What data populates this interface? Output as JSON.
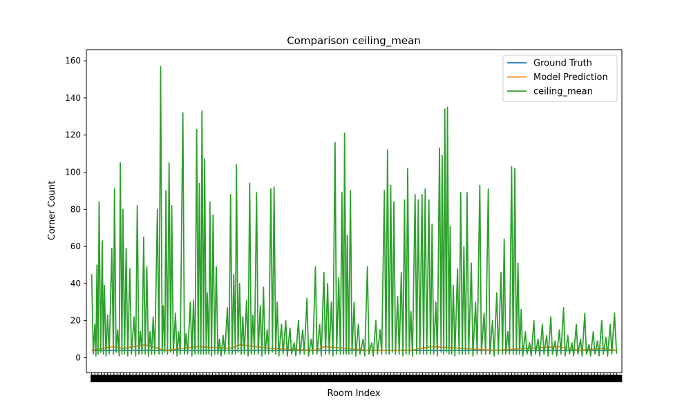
{
  "chart_data": {
    "type": "line",
    "title": "Comparison ceiling_mean",
    "xlabel": "Room Index",
    "ylabel": "Corner Count",
    "ylim": [
      -8,
      166
    ],
    "yticks": [
      0,
      20,
      40,
      60,
      80,
      100,
      120,
      140,
      160
    ],
    "xlim": [
      -10,
      1000
    ],
    "grid": false,
    "legend_position": "top-right",
    "series": [
      {
        "name": "Ground Truth",
        "color": "#1f77b4",
        "points": [
          [
            0,
            4
          ],
          [
            150,
            4
          ],
          [
            300,
            4
          ],
          [
            450,
            4
          ],
          [
            600,
            4
          ],
          [
            750,
            4
          ],
          [
            900,
            4
          ],
          [
            990,
            4
          ]
        ]
      },
      {
        "name": "Model Prediction",
        "color": "#ff7f0e",
        "points": [
          [
            0,
            4
          ],
          [
            40,
            6
          ],
          [
            60,
            5
          ],
          [
            100,
            7
          ],
          [
            140,
            4
          ],
          [
            200,
            6
          ],
          [
            260,
            5
          ],
          [
            280,
            7
          ],
          [
            340,
            5
          ],
          [
            420,
            4
          ],
          [
            440,
            6
          ],
          [
            480,
            5
          ],
          [
            520,
            4
          ],
          [
            600,
            4
          ],
          [
            640,
            6
          ],
          [
            700,
            5
          ],
          [
            760,
            4
          ],
          [
            820,
            5
          ],
          [
            880,
            6
          ],
          [
            920,
            4
          ],
          [
            960,
            5
          ],
          [
            990,
            4
          ]
        ]
      },
      {
        "name": "ceiling_mean",
        "color": "#2ca02c",
        "points": [
          [
            0,
            45
          ],
          [
            3,
            2
          ],
          [
            6,
            18
          ],
          [
            8,
            1
          ],
          [
            10,
            50
          ],
          [
            12,
            2
          ],
          [
            14,
            84
          ],
          [
            17,
            3
          ],
          [
            20,
            63
          ],
          [
            22,
            2
          ],
          [
            24,
            39
          ],
          [
            27,
            1
          ],
          [
            30,
            23
          ],
          [
            33,
            2
          ],
          [
            38,
            59
          ],
          [
            41,
            2
          ],
          [
            43,
            91
          ],
          [
            46,
            3
          ],
          [
            49,
            15
          ],
          [
            52,
            1
          ],
          [
            54,
            105
          ],
          [
            57,
            2
          ],
          [
            59,
            80
          ],
          [
            62,
            2
          ],
          [
            65,
            59
          ],
          [
            68,
            1
          ],
          [
            72,
            48
          ],
          [
            75,
            2
          ],
          [
            80,
            22
          ],
          [
            83,
            1
          ],
          [
            86,
            82
          ],
          [
            89,
            2
          ],
          [
            92,
            14
          ],
          [
            95,
            2
          ],
          [
            98,
            65
          ],
          [
            101,
            2
          ],
          [
            104,
            49
          ],
          [
            107,
            1
          ],
          [
            110,
            14
          ],
          [
            113,
            2
          ],
          [
            116,
            22
          ],
          [
            119,
            2
          ],
          [
            124,
            80
          ],
          [
            127,
            2
          ],
          [
            130,
            157
          ],
          [
            133,
            2
          ],
          [
            135,
            28
          ],
          [
            138,
            3
          ],
          [
            140,
            90
          ],
          [
            143,
            2
          ],
          [
            146,
            105
          ],
          [
            149,
            3
          ],
          [
            151,
            82
          ],
          [
            154,
            2
          ],
          [
            158,
            24
          ],
          [
            161,
            1
          ],
          [
            164,
            14
          ],
          [
            167,
            2
          ],
          [
            172,
            132
          ],
          [
            175,
            2
          ],
          [
            178,
            13
          ],
          [
            181,
            2
          ],
          [
            186,
            30
          ],
          [
            189,
            1
          ],
          [
            192,
            31
          ],
          [
            195,
            2
          ],
          [
            198,
            123
          ],
          [
            201,
            2
          ],
          [
            203,
            94
          ],
          [
            206,
            2
          ],
          [
            208,
            133
          ],
          [
            211,
            2
          ],
          [
            213,
            107
          ],
          [
            216,
            2
          ],
          [
            218,
            35
          ],
          [
            221,
            2
          ],
          [
            223,
            84
          ],
          [
            226,
            1
          ],
          [
            229,
            77
          ],
          [
            232,
            2
          ],
          [
            235,
            49
          ],
          [
            238,
            2
          ],
          [
            241,
            10
          ],
          [
            244,
            1
          ],
          [
            248,
            12
          ],
          [
            251,
            2
          ],
          [
            256,
            27
          ],
          [
            259,
            2
          ],
          [
            262,
            88
          ],
          [
            265,
            2
          ],
          [
            268,
            45
          ],
          [
            271,
            2
          ],
          [
            273,
            104
          ],
          [
            276,
            3
          ],
          [
            279,
            40
          ],
          [
            282,
            2
          ],
          [
            285,
            22
          ],
          [
            288,
            2
          ],
          [
            292,
            31
          ],
          [
            295,
            1
          ],
          [
            298,
            94
          ],
          [
            301,
            2
          ],
          [
            304,
            23
          ],
          [
            307,
            2
          ],
          [
            311,
            89
          ],
          [
            314,
            2
          ],
          [
            318,
            28
          ],
          [
            321,
            1
          ],
          [
            324,
            38
          ],
          [
            327,
            2
          ],
          [
            331,
            15
          ],
          [
            334,
            2
          ],
          [
            338,
            91
          ],
          [
            341,
            3
          ],
          [
            344,
            92
          ],
          [
            347,
            2
          ],
          [
            350,
            30
          ],
          [
            353,
            1
          ],
          [
            358,
            18
          ],
          [
            361,
            2
          ],
          [
            366,
            20
          ],
          [
            369,
            1
          ],
          [
            374,
            16
          ],
          [
            377,
            2
          ],
          [
            382,
            8
          ],
          [
            385,
            1
          ],
          [
            390,
            20
          ],
          [
            393,
            2
          ],
          [
            398,
            15
          ],
          [
            401,
            2
          ],
          [
            406,
            32
          ],
          [
            409,
            1
          ],
          [
            414,
            10
          ],
          [
            417,
            2
          ],
          [
            422,
            49
          ],
          [
            425,
            2
          ],
          [
            430,
            18
          ],
          [
            433,
            1
          ],
          [
            438,
            46
          ],
          [
            441,
            2
          ],
          [
            445,
            40
          ],
          [
            448,
            2
          ],
          [
            452,
            30
          ],
          [
            455,
            1
          ],
          [
            459,
            116
          ],
          [
            462,
            2
          ],
          [
            466,
            43
          ],
          [
            469,
            2
          ],
          [
            472,
            89
          ],
          [
            475,
            2
          ],
          [
            477,
            121
          ],
          [
            480,
            2
          ],
          [
            482,
            66
          ],
          [
            485,
            2
          ],
          [
            488,
            90
          ],
          [
            491,
            2
          ],
          [
            495,
            30
          ],
          [
            498,
            1
          ],
          [
            503,
            18
          ],
          [
            506,
            2
          ],
          [
            512,
            10
          ],
          [
            515,
            1
          ],
          [
            520,
            49
          ],
          [
            523,
            2
          ],
          [
            528,
            8
          ],
          [
            531,
            1
          ],
          [
            536,
            20
          ],
          [
            539,
            2
          ],
          [
            544,
            15
          ],
          [
            547,
            2
          ],
          [
            552,
            90
          ],
          [
            555,
            2
          ],
          [
            558,
            112
          ],
          [
            561,
            2
          ],
          [
            564,
            93
          ],
          [
            567,
            3
          ],
          [
            570,
            84
          ],
          [
            573,
            2
          ],
          [
            577,
            33
          ],
          [
            580,
            2
          ],
          [
            584,
            46
          ],
          [
            587,
            1
          ],
          [
            590,
            85
          ],
          [
            593,
            2
          ],
          [
            596,
            102
          ],
          [
            599,
            2
          ],
          [
            602,
            25
          ],
          [
            605,
            1
          ],
          [
            610,
            88
          ],
          [
            613,
            2
          ],
          [
            616,
            85
          ],
          [
            619,
            2
          ],
          [
            623,
            88
          ],
          [
            626,
            2
          ],
          [
            629,
            91
          ],
          [
            632,
            2
          ],
          [
            636,
            85
          ],
          [
            639,
            2
          ],
          [
            642,
            72
          ],
          [
            645,
            2
          ],
          [
            649,
            30
          ],
          [
            652,
            1
          ],
          [
            656,
            113
          ],
          [
            659,
            3
          ],
          [
            661,
            109
          ],
          [
            664,
            2
          ],
          [
            666,
            134
          ],
          [
            669,
            3
          ],
          [
            671,
            135
          ],
          [
            674,
            2
          ],
          [
            676,
            71
          ],
          [
            679,
            2
          ],
          [
            682,
            39
          ],
          [
            685,
            1
          ],
          [
            690,
            48
          ],
          [
            693,
            2
          ],
          [
            696,
            89
          ],
          [
            699,
            2
          ],
          [
            702,
            60
          ],
          [
            705,
            2
          ],
          [
            708,
            89
          ],
          [
            711,
            2
          ],
          [
            716,
            51
          ],
          [
            719,
            1
          ],
          [
            724,
            30
          ],
          [
            727,
            2
          ],
          [
            732,
            93
          ],
          [
            735,
            2
          ],
          [
            740,
            24
          ],
          [
            743,
            2
          ],
          [
            748,
            91
          ],
          [
            751,
            2
          ],
          [
            756,
            20
          ],
          [
            759,
            1
          ],
          [
            764,
            35
          ],
          [
            767,
            2
          ],
          [
            772,
            46
          ],
          [
            775,
            2
          ],
          [
            778,
            64
          ],
          [
            781,
            2
          ],
          [
            785,
            14
          ],
          [
            788,
            2
          ],
          [
            792,
            103
          ],
          [
            795,
            2
          ],
          [
            798,
            102
          ],
          [
            801,
            2
          ],
          [
            804,
            51
          ],
          [
            807,
            2
          ],
          [
            810,
            26
          ],
          [
            813,
            1
          ],
          [
            818,
            14
          ],
          [
            821,
            2
          ],
          [
            826,
            8
          ],
          [
            829,
            1
          ],
          [
            834,
            20
          ],
          [
            837,
            2
          ],
          [
            842,
            10
          ],
          [
            845,
            1
          ],
          [
            850,
            18
          ],
          [
            853,
            2
          ],
          [
            858,
            12
          ],
          [
            861,
            1
          ],
          [
            866,
            22
          ],
          [
            869,
            2
          ],
          [
            874,
            9
          ],
          [
            877,
            1
          ],
          [
            882,
            15
          ],
          [
            885,
            2
          ],
          [
            890,
            27
          ],
          [
            893,
            1
          ],
          [
            898,
            12
          ],
          [
            901,
            2
          ],
          [
            906,
            8
          ],
          [
            909,
            1
          ],
          [
            914,
            18
          ],
          [
            917,
            2
          ],
          [
            922,
            10
          ],
          [
            925,
            1
          ],
          [
            930,
            24
          ],
          [
            933,
            2
          ],
          [
            938,
            7
          ],
          [
            941,
            1
          ],
          [
            946,
            14
          ],
          [
            949,
            2
          ],
          [
            954,
            9
          ],
          [
            957,
            1
          ],
          [
            962,
            20
          ],
          [
            965,
            2
          ],
          [
            970,
            11
          ],
          [
            973,
            1
          ],
          [
            978,
            18
          ],
          [
            981,
            2
          ],
          [
            986,
            24
          ],
          [
            990,
            2
          ]
        ]
      }
    ]
  }
}
